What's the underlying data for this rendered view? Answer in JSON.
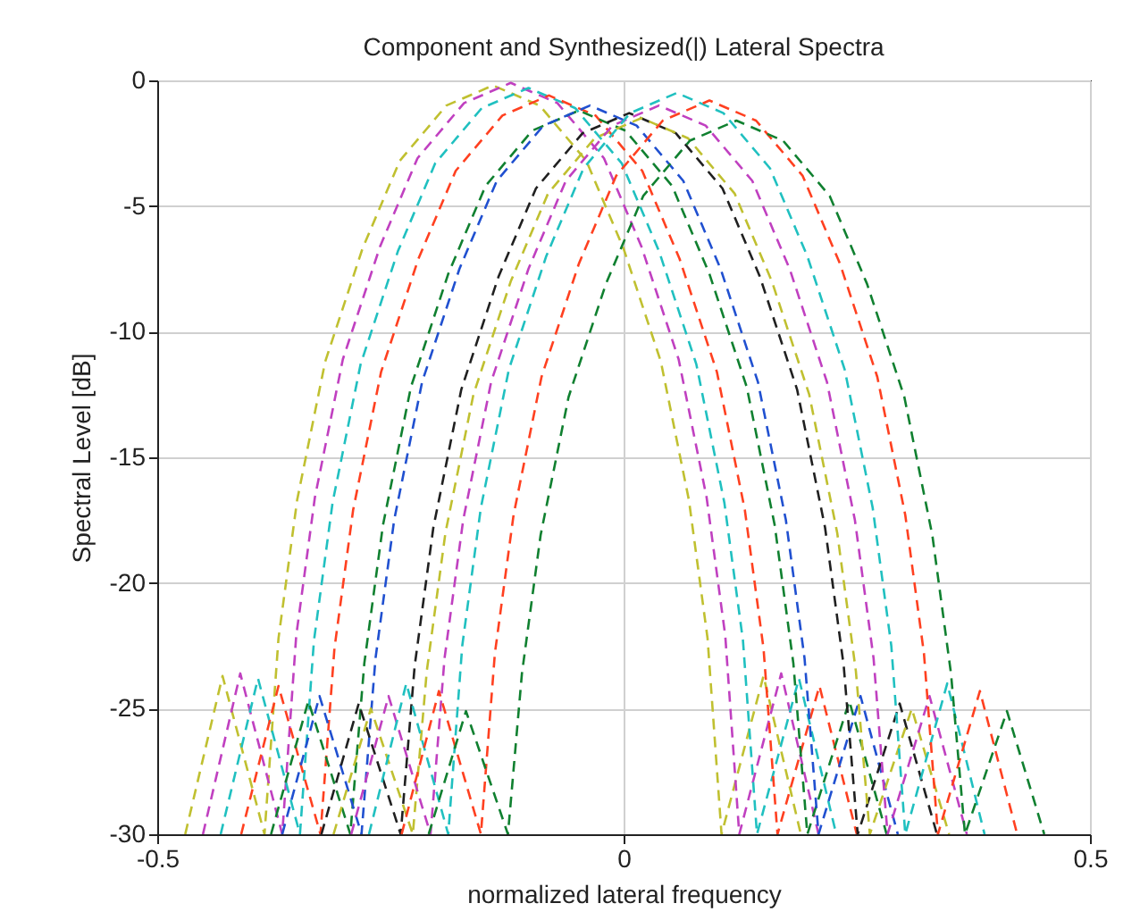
{
  "chart_data": {
    "type": "line",
    "title": "Component and Synthesized(|) Lateral Spectra",
    "xlabel": "normalized lateral frequency",
    "ylabel": "Spectral Level [dB]",
    "xlim": [
      -0.5,
      0.5
    ],
    "xticks": [
      -0.5,
      0,
      0.5
    ],
    "ylim": [
      -30,
      0
    ],
    "yticks": [
      -30,
      -25,
      -20,
      -15,
      -10,
      -5,
      0
    ],
    "grid": true,
    "legend": false,
    "marker": "none",
    "line_style": "dashed",
    "series": [
      {
        "color": "#c0c030",
        "x": [
          -0.47,
          -0.43,
          -0.385,
          -0.37,
          -0.35,
          -0.32,
          -0.28,
          -0.24,
          -0.19,
          -0.14,
          -0.09,
          -0.04,
          0,
          0.04,
          0.07,
          0.09,
          0.105,
          0.15,
          0.19
        ],
        "values": [
          -30,
          -23.7,
          -30,
          -22.2,
          -16.7,
          -11.2,
          -6.7,
          -3.2,
          -1,
          -0.2,
          -1,
          -3.2,
          -6.7,
          -11.2,
          -16.7,
          -22.2,
          -30,
          -23.7,
          -30
        ]
      },
      {
        "color": "#c040c0",
        "x": [
          -0.451,
          -0.411,
          -0.366,
          -0.351,
          -0.331,
          -0.301,
          -0.261,
          -0.221,
          -0.171,
          -0.121,
          -0.071,
          -0.021,
          0.019,
          0.059,
          0.089,
          0.109,
          0.124,
          0.169,
          0.209
        ],
        "values": [
          -30,
          -23.6,
          -30,
          -22.1,
          -16.6,
          -11.1,
          -6.6,
          -3.1,
          -0.9,
          -0.1,
          -0.9,
          -3.1,
          -6.6,
          -11.1,
          -16.6,
          -22.1,
          -30,
          -23.6,
          -30
        ]
      },
      {
        "color": "#20c0c0",
        "x": [
          -0.432,
          -0.392,
          -0.347,
          -0.332,
          -0.312,
          -0.282,
          -0.242,
          -0.202,
          -0.152,
          -0.102,
          -0.052,
          -0.002,
          0.038,
          0.078,
          0.108,
          0.128,
          0.143,
          0.188,
          0.228
        ],
        "values": [
          -30,
          -23.8,
          -30,
          -22.3,
          -16.8,
          -11.3,
          -6.8,
          -3.3,
          -1.1,
          -0.3,
          -1.1,
          -3.3,
          -6.8,
          -11.3,
          -16.8,
          -22.3,
          -30,
          -23.8,
          -30
        ]
      },
      {
        "color": "#ff4020",
        "x": [
          -0.41,
          -0.37,
          -0.325,
          -0.31,
          -0.29,
          -0.26,
          -0.22,
          -0.18,
          -0.13,
          -0.08,
          -0.03,
          0.02,
          0.06,
          0.1,
          0.13,
          0.15,
          0.165,
          0.21,
          0.25
        ],
        "values": [
          -30,
          -24.1,
          -30,
          -22.6,
          -17.1,
          -11.6,
          -7.1,
          -3.6,
          -1.4,
          -0.6,
          -1.4,
          -3.6,
          -7.1,
          -11.6,
          -17.1,
          -22.6,
          -30,
          -24.1,
          -30
        ]
      },
      {
        "color": "#108030",
        "x": [
          -0.378,
          -0.338,
          -0.293,
          -0.278,
          -0.258,
          -0.228,
          -0.188,
          -0.148,
          -0.098,
          -0.048,
          0.002,
          0.052,
          0.092,
          0.132,
          0.162,
          0.182,
          0.197,
          0.242,
          0.282
        ],
        "values": [
          -30,
          -24.7,
          -30,
          -23.2,
          -17.7,
          -12.2,
          -7.7,
          -4.2,
          -2,
          -1.2,
          -2,
          -4.2,
          -7.7,
          -12.2,
          -17.7,
          -23.2,
          -30,
          -24.7,
          -30
        ]
      },
      {
        "color": "#2050d0",
        "x": [
          -0.366,
          -0.326,
          -0.281,
          -0.266,
          -0.246,
          -0.216,
          -0.176,
          -0.136,
          -0.086,
          -0.036,
          0.014,
          0.064,
          0.104,
          0.144,
          0.174,
          0.194,
          0.209,
          0.254,
          0.294
        ],
        "values": [
          -30,
          -24.5,
          -30,
          -23,
          -17.5,
          -12,
          -7.5,
          -4,
          -1.8,
          -1,
          -1.8,
          -4,
          -7.5,
          -12,
          -17.5,
          -23,
          -30,
          -24.5,
          -30
        ]
      },
      {
        "color": "#202020",
        "x": [
          -0.324,
          -0.284,
          -0.239,
          -0.224,
          -0.204,
          -0.174,
          -0.134,
          -0.094,
          -0.044,
          0.006,
          0.056,
          0.106,
          0.146,
          0.186,
          0.216,
          0.236,
          0.251,
          0.296,
          0.336
        ],
        "values": [
          -30,
          -24.8,
          -30,
          -23.3,
          -17.8,
          -12.3,
          -7.8,
          -4.3,
          -2.1,
          -1.3,
          -2.1,
          -4.3,
          -7.8,
          -12.3,
          -17.8,
          -23.3,
          -30,
          -24.8,
          -30
        ]
      },
      {
        "color": "#c0c030",
        "x": [
          -0.311,
          -0.271,
          -0.226,
          -0.211,
          -0.191,
          -0.161,
          -0.121,
          -0.081,
          -0.031,
          0.019,
          0.069,
          0.119,
          0.159,
          0.199,
          0.229,
          0.249,
          0.264,
          0.309,
          0.349
        ],
        "values": [
          -30,
          -25,
          -30,
          -23.5,
          -18,
          -12.5,
          -8,
          -4.5,
          -2.3,
          -1.5,
          -2.3,
          -4.5,
          -8,
          -12.5,
          -18,
          -23.5,
          -30,
          -25,
          -30
        ]
      },
      {
        "color": "#c040c0",
        "x": [
          -0.292,
          -0.252,
          -0.207,
          -0.192,
          -0.172,
          -0.142,
          -0.102,
          -0.062,
          -0.012,
          0.038,
          0.088,
          0.138,
          0.178,
          0.218,
          0.248,
          0.268,
          0.283,
          0.328,
          0.368
        ],
        "values": [
          -30,
          -24.5,
          -30,
          -23,
          -17.5,
          -12,
          -7.5,
          -4,
          -1.8,
          -1,
          -1.8,
          -4,
          -7.5,
          -12,
          -17.5,
          -23,
          -30,
          -24.5,
          -30
        ]
      },
      {
        "color": "#20c0c0",
        "x": [
          -0.273,
          -0.233,
          -0.188,
          -0.173,
          -0.153,
          -0.123,
          -0.083,
          -0.043,
          0.007,
          0.057,
          0.107,
          0.157,
          0.197,
          0.237,
          0.267,
          0.287,
          0.302,
          0.347,
          0.387
        ],
        "values": [
          -30,
          -24,
          -30,
          -22.5,
          -17,
          -11.5,
          -7,
          -3.5,
          -1.3,
          -0.5,
          -1.3,
          -3.5,
          -7,
          -11.5,
          -17,
          -22.5,
          -30,
          -24,
          -30
        ]
      },
      {
        "color": "#ff4020",
        "x": [
          -0.238,
          -0.198,
          -0.153,
          -0.138,
          -0.118,
          -0.088,
          -0.048,
          -0.008,
          0.042,
          0.092,
          0.142,
          0.192,
          0.232,
          0.272,
          0.302,
          0.322,
          0.337,
          0.382,
          0.422
        ],
        "values": [
          -30,
          -24.3,
          -30,
          -22.8,
          -17.3,
          -11.8,
          -7.3,
          -3.8,
          -1.6,
          -0.8,
          -1.6,
          -3.8,
          -7.3,
          -11.8,
          -17.3,
          -22.8,
          -30,
          -24.3,
          -30
        ]
      },
      {
        "color": "#108030",
        "x": [
          -0.209,
          -0.169,
          -0.124,
          -0.109,
          -0.089,
          -0.059,
          -0.019,
          0.021,
          0.071,
          0.121,
          0.171,
          0.221,
          0.261,
          0.301,
          0.331,
          0.351,
          0.366,
          0.411,
          0.451
        ],
        "values": [
          -30,
          -25.1,
          -30,
          -23.6,
          -18.1,
          -12.6,
          -8.1,
          -4.6,
          -2.4,
          -1.6,
          -2.4,
          -4.6,
          -8.1,
          -12.6,
          -18.1,
          -23.6,
          -30,
          -25.1,
          -30
        ]
      }
    ]
  }
}
